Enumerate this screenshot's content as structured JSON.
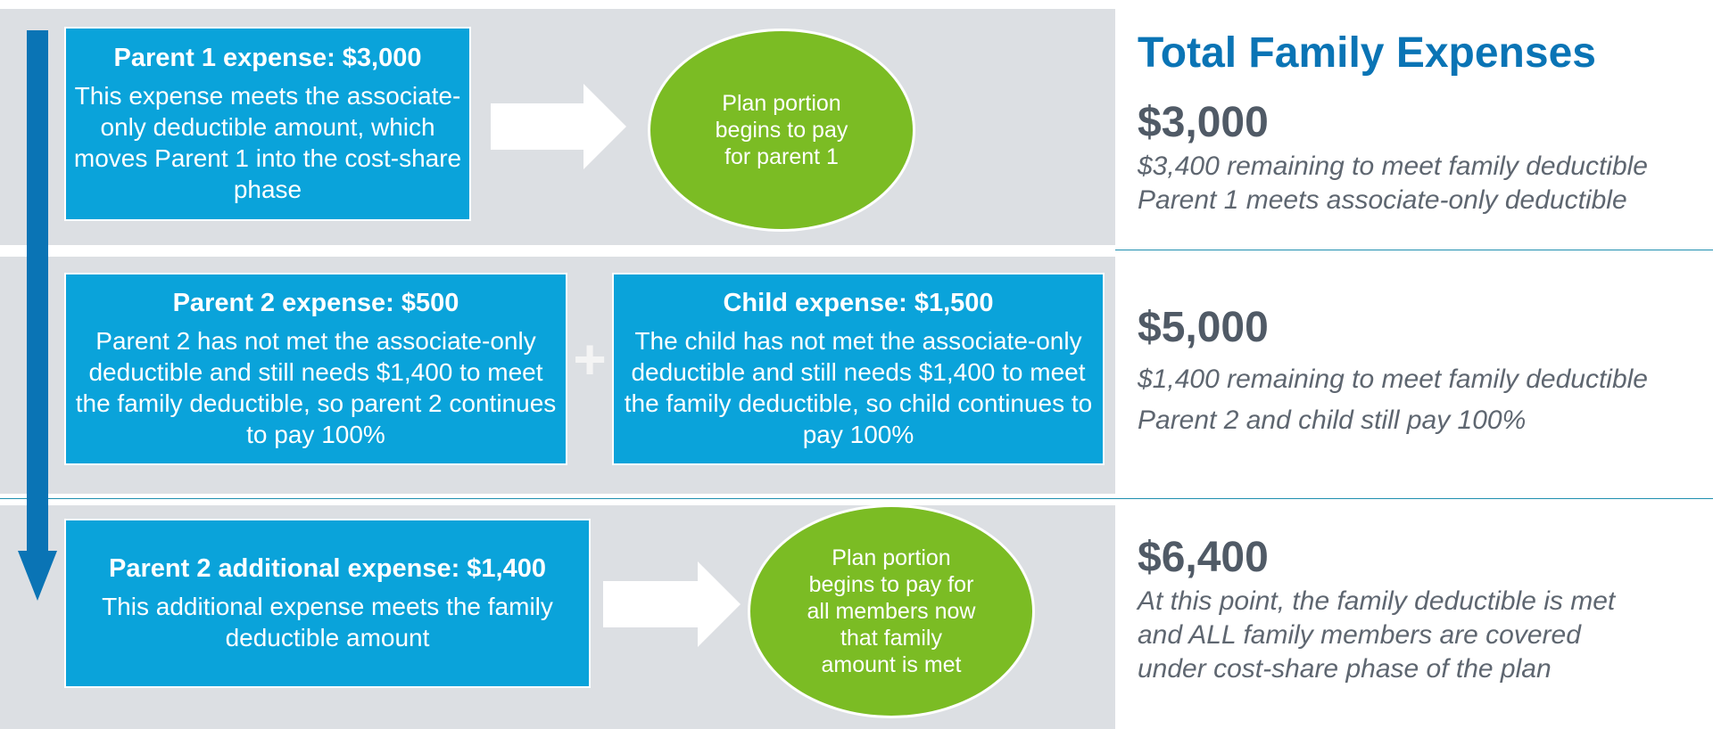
{
  "row1": {
    "box": {
      "title": "Parent 1 expense: $3,000",
      "desc": "This expense meets the associate-only deductible amount, which moves Parent 1 into the cost-share phase"
    },
    "oval": [
      "Plan portion",
      "begins to pay",
      "for parent 1"
    ]
  },
  "row2": {
    "box_left": {
      "title": "Parent 2 expense: $500",
      "desc": "Parent 2 has not met the associate-only deductible and still needs $1,400 to meet the family deductible, so parent 2 continues to pay 100%"
    },
    "plus": "+",
    "box_right": {
      "title": "Child expense: $1,500",
      "desc": "The child has not met the associate-only deductible and still needs $1,400 to meet the family deductible, so child continues to pay 100%"
    }
  },
  "row3": {
    "box": {
      "title": "Parent 2 additional expense: $1,400",
      "desc": "This additional expense meets the family deductible amount"
    },
    "oval": [
      "Plan portion",
      "begins to pay for",
      "all members now",
      "that family",
      "amount is met"
    ]
  },
  "summary": {
    "title": "Total Family Expenses",
    "s1": {
      "amount": "$3,000",
      "notes": [
        "$3,400 remaining to meet family deductible",
        "Parent 1 meets associate-only deductible"
      ]
    },
    "s2": {
      "amount": "$5,000",
      "notes": [
        "$1,400 remaining to meet family deductible",
        "Parent 2 and child still pay 100%"
      ]
    },
    "s3": {
      "amount": "$6,400",
      "notes": [
        "At this point, the family deductible is met",
        "and ALL family members are covered",
        "under cost-share phase of the plan"
      ]
    }
  },
  "colors": {
    "band_gray": "#dcdfe3",
    "box_blue": "#0aa3da",
    "oval_green": "#7bbc24",
    "timeline_blue": "#0a74b5",
    "title_blue": "#0a74b5",
    "amount_gray": "#505a66",
    "note_gray": "#5e6670"
  }
}
